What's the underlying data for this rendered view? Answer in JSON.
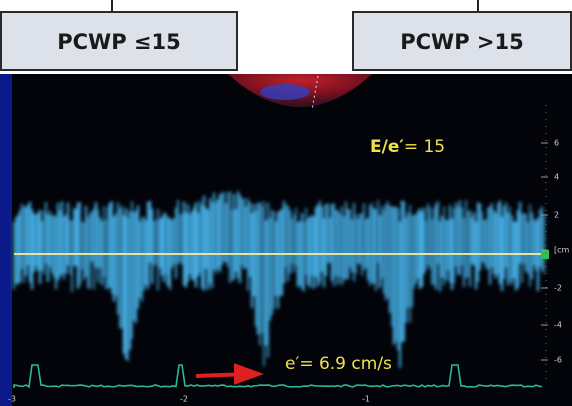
{
  "boxes": [
    {
      "label": "PCWP ≤15"
    },
    {
      "label": "PCWP >15"
    }
  ],
  "annotations": {
    "ratio_name": "E/e′",
    "ratio_value": "= 15",
    "velocity": "e′= 6.9 cm/s"
  },
  "scale_labels": [
    "6",
    "4",
    "2",
    "[cm",
    "-2",
    "-4",
    "-6"
  ],
  "time_labels": [
    "-3",
    "-2",
    "-1"
  ]
}
